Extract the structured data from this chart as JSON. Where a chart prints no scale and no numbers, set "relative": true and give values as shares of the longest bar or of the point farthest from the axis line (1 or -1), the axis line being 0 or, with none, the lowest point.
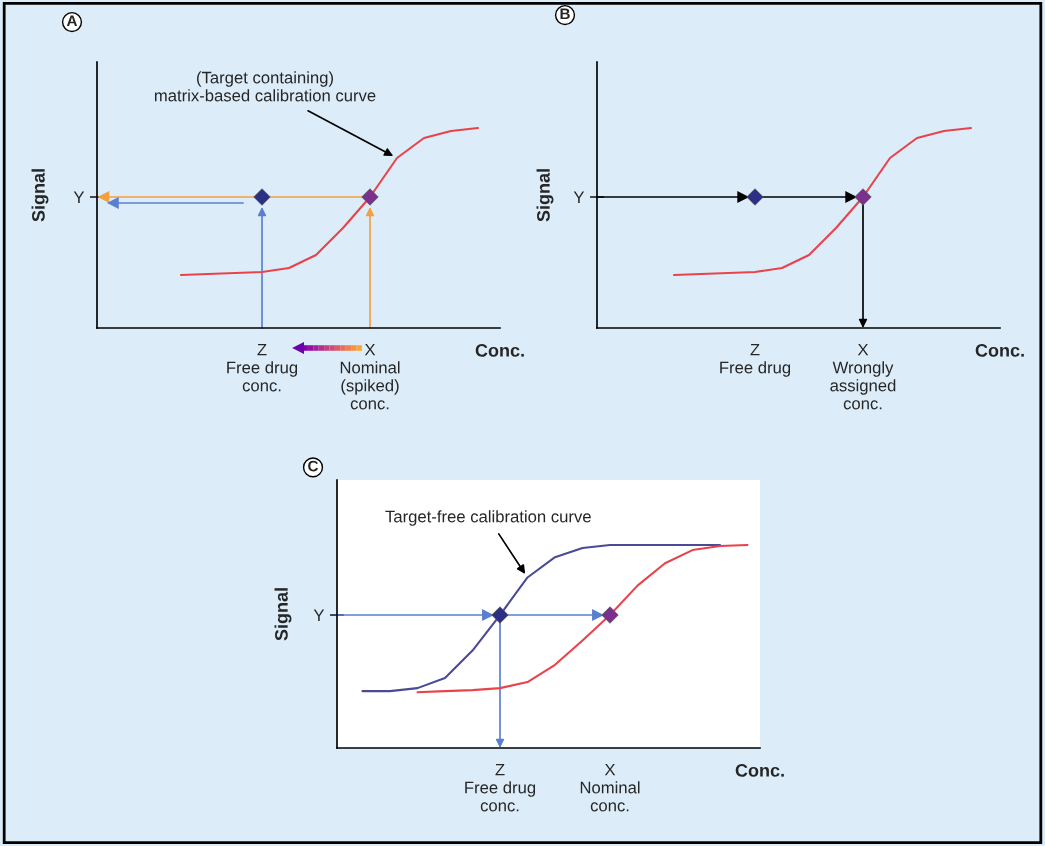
{
  "chart_data": [
    {
      "type": "line",
      "title": "A",
      "relative": true,
      "xlabel": "Conc.",
      "ylabel": "Signal",
      "categories": [
        null,
        null,
        null,
        "Z\nFree drug\nconc.",
        null,
        null,
        null,
        "X\nNominal\n(spiked)\nconc.",
        null,
        null,
        null,
        null
      ],
      "series": [
        {
          "color": "#e8434b",
          "values": [
            0.265,
            0.27,
            0.275,
            0.28,
            0.3,
            0.365,
            0.5,
            0.655,
            0.85,
            0.95,
            0.985,
            1.0
          ]
        },
        {
          "type": "scatter",
          "marker": "diamond",
          "color": "#2b2f86",
          "values": [
            null,
            null,
            null,
            0.655,
            null,
            null,
            null,
            null,
            null,
            null,
            null,
            null
          ]
        },
        {
          "type": "scatter",
          "marker": "diamond",
          "color": "#7b2f8e",
          "values": [
            null,
            null,
            null,
            null,
            null,
            null,
            null,
            0.655,
            null,
            null,
            null,
            null
          ]
        }
      ],
      "ref_lines": [
        {
          "axis": "y",
          "value": 0.655,
          "label": "Y",
          "color": "#f4a040"
        },
        {
          "axis": "y",
          "value": 0.625,
          "color": "#5a7fd0"
        }
      ],
      "annotations": [
        "(Target containing)\nmatrix-based calibration curve"
      ]
    },
    {
      "type": "line",
      "title": "B",
      "relative": true,
      "xlabel": "Conc.",
      "ylabel": "Signal",
      "categories": [
        null,
        null,
        null,
        "Z\nFree drug",
        null,
        null,
        null,
        "X\nWrongly\nassigned\nconc.",
        null,
        null,
        null,
        null
      ],
      "series": [
        {
          "color": "#e8434b",
          "values": [
            0.265,
            0.27,
            0.275,
            0.28,
            0.3,
            0.365,
            0.5,
            0.655,
            0.85,
            0.95,
            0.985,
            1.0
          ]
        },
        {
          "type": "scatter",
          "marker": "diamond",
          "color": "#2b2f86",
          "values": [
            null,
            null,
            null,
            0.655,
            null,
            null,
            null,
            null,
            null,
            null,
            null,
            null
          ]
        },
        {
          "type": "scatter",
          "marker": "diamond",
          "color": "#7b2f8e",
          "values": [
            null,
            null,
            null,
            null,
            null,
            null,
            null,
            0.655,
            null,
            null,
            null,
            null
          ]
        }
      ],
      "ref_lines": [
        {
          "axis": "y",
          "value": 0.655,
          "label": "Y",
          "color": "#000000"
        }
      ]
    },
    {
      "type": "line",
      "title": "C",
      "relative": true,
      "xlabel": "Conc.",
      "ylabel": "Signal",
      "categories": [
        null,
        null,
        null,
        null,
        null,
        "Z\nFree drug\nconc.",
        null,
        null,
        null,
        "X\nNominal\nconc.",
        null,
        null,
        null,
        null,
        null
      ],
      "series": [
        {
          "color": "#4a4a96",
          "values": [
            0.28,
            0.28,
            0.295,
            0.345,
            0.48,
            0.655,
            0.84,
            0.94,
            0.985,
            1.0,
            1.0,
            1.0,
            1.0,
            1.0,
            null
          ]
        },
        {
          "color": "#e8434b",
          "values": [
            null,
            null,
            0.275,
            0.28,
            0.285,
            0.295,
            0.325,
            0.41,
            0.53,
            0.655,
            0.8,
            0.91,
            0.975,
            0.995,
            1.0
          ]
        },
        {
          "type": "scatter",
          "marker": "diamond",
          "color": "#2b2f86",
          "values": [
            null,
            null,
            null,
            null,
            null,
            0.655,
            null,
            null,
            null,
            null,
            null,
            null,
            null,
            null,
            null
          ]
        },
        {
          "type": "scatter",
          "marker": "diamond",
          "color": "#7b2f8e",
          "values": [
            null,
            null,
            null,
            null,
            null,
            null,
            null,
            null,
            null,
            0.655,
            null,
            null,
            null,
            null,
            null
          ]
        }
      ],
      "ref_lines": [
        {
          "axis": "y",
          "value": 0.655,
          "label": "Y",
          "color": "#5a7fd0"
        }
      ],
      "annotations": [
        "Target-free calibration curve"
      ]
    }
  ]
}
